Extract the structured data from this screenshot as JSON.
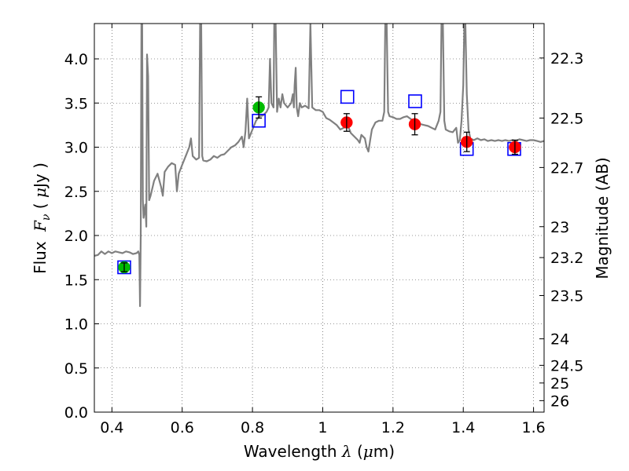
{
  "chart_data": {
    "type": "scatter",
    "xlabel": "Wavelength  λ (μm)",
    "ylabel": "Flux  F_ν  ( μJy )",
    "ylabel_parts": {
      "prefix": "Flux ",
      "sym": "F",
      "sub": "ν",
      "unit_open": "  ( ",
      "mu": "μ",
      "unit_rest": "Jy )"
    },
    "xlabel_parts": {
      "prefix": "Wavelength  ",
      "sym": "λ",
      "open": " (",
      "mu": "μ",
      "rest": "m)"
    },
    "y2label": "Magnitude (AB)",
    "xlim": [
      0.35,
      1.63
    ],
    "ylim": [
      0.0,
      4.4
    ],
    "grid": true,
    "x_ticks": [
      0.4,
      0.6,
      0.8,
      1.0,
      1.2,
      1.4,
      1.6
    ],
    "x_tick_labels": [
      "0.4",
      "0.6",
      "0.8",
      "1",
      "1.2",
      "1.4",
      "1.6"
    ],
    "y_ticks": [
      0.0,
      0.5,
      1.0,
      1.5,
      2.0,
      2.5,
      3.0,
      3.5,
      4.0
    ],
    "y_tick_labels": [
      "0.0",
      "0.5",
      "1.0",
      "1.5",
      "2.0",
      "2.5",
      "3.0",
      "3.5",
      "4.0"
    ],
    "y2_ticks": [
      {
        "label": "22.3",
        "flux": 4.01
      },
      {
        "label": "22.5",
        "flux": 3.33
      },
      {
        "label": "22.7",
        "flux": 2.77
      },
      {
        "label": "23",
        "flux": 2.1
      },
      {
        "label": "23.2",
        "flux": 1.75
      },
      {
        "label": "23.5",
        "flux": 1.32
      },
      {
        "label": "24",
        "flux": 0.83
      },
      {
        "label": "24.5",
        "flux": 0.53
      },
      {
        "label": "25",
        "flux": 0.33
      },
      {
        "label": "26",
        "flux": 0.13
      }
    ],
    "series": [
      {
        "kind": "spectrum",
        "color": "#808080",
        "points": [
          [
            0.35,
            1.77
          ],
          [
            0.36,
            1.78
          ],
          [
            0.37,
            1.82
          ],
          [
            0.38,
            1.79
          ],
          [
            0.39,
            1.82
          ],
          [
            0.4,
            1.8
          ],
          [
            0.41,
            1.82
          ],
          [
            0.42,
            1.81
          ],
          [
            0.43,
            1.8
          ],
          [
            0.44,
            1.82
          ],
          [
            0.45,
            1.81
          ],
          [
            0.46,
            1.79
          ],
          [
            0.47,
            1.8
          ],
          [
            0.475,
            1.82
          ],
          [
            0.478,
            1.78
          ],
          [
            0.48,
            1.2
          ],
          [
            0.482,
            2.0
          ],
          [
            0.484,
            4.4
          ],
          [
            0.486,
            4.4
          ],
          [
            0.488,
            2.4
          ],
          [
            0.49,
            2.2
          ],
          [
            0.495,
            2.35
          ],
          [
            0.498,
            2.1
          ],
          [
            0.5,
            4.05
          ],
          [
            0.503,
            3.8
          ],
          [
            0.506,
            2.4
          ],
          [
            0.51,
            2.45
          ],
          [
            0.52,
            2.62
          ],
          [
            0.53,
            2.7
          ],
          [
            0.54,
            2.55
          ],
          [
            0.545,
            2.45
          ],
          [
            0.55,
            2.72
          ],
          [
            0.56,
            2.78
          ],
          [
            0.57,
            2.82
          ],
          [
            0.58,
            2.8
          ],
          [
            0.585,
            2.5
          ],
          [
            0.59,
            2.7
          ],
          [
            0.6,
            2.8
          ],
          [
            0.61,
            2.9
          ],
          [
            0.62,
            3.0
          ],
          [
            0.625,
            3.1
          ],
          [
            0.63,
            2.9
          ],
          [
            0.64,
            2.86
          ],
          [
            0.648,
            2.88
          ],
          [
            0.651,
            4.4
          ],
          [
            0.654,
            4.4
          ],
          [
            0.657,
            2.9
          ],
          [
            0.66,
            2.85
          ],
          [
            0.67,
            2.84
          ],
          [
            0.68,
            2.86
          ],
          [
            0.69,
            2.9
          ],
          [
            0.7,
            2.88
          ],
          [
            0.71,
            2.91
          ],
          [
            0.72,
            2.92
          ],
          [
            0.73,
            2.96
          ],
          [
            0.74,
            3.0
          ],
          [
            0.75,
            3.02
          ],
          [
            0.76,
            3.06
          ],
          [
            0.77,
            3.12
          ],
          [
            0.775,
            3.0
          ],
          [
            0.78,
            3.18
          ],
          [
            0.785,
            3.55
          ],
          [
            0.79,
            3.1
          ],
          [
            0.8,
            3.2
          ],
          [
            0.81,
            3.3
          ],
          [
            0.82,
            3.35
          ],
          [
            0.83,
            3.36
          ],
          [
            0.84,
            3.4
          ],
          [
            0.846,
            3.45
          ],
          [
            0.85,
            4.0
          ],
          [
            0.854,
            3.5
          ],
          [
            0.86,
            3.45
          ],
          [
            0.862,
            4.4
          ],
          [
            0.866,
            4.4
          ],
          [
            0.87,
            3.4
          ],
          [
            0.875,
            3.55
          ],
          [
            0.88,
            3.45
          ],
          [
            0.885,
            3.6
          ],
          [
            0.89,
            3.5
          ],
          [
            0.9,
            3.45
          ],
          [
            0.91,
            3.5
          ],
          [
            0.915,
            3.6
          ],
          [
            0.918,
            3.45
          ],
          [
            0.92,
            3.7
          ],
          [
            0.923,
            3.9
          ],
          [
            0.926,
            3.45
          ],
          [
            0.93,
            3.35
          ],
          [
            0.935,
            3.5
          ],
          [
            0.94,
            3.45
          ],
          [
            0.95,
            3.47
          ],
          [
            0.96,
            3.44
          ],
          [
            0.965,
            4.4
          ],
          [
            0.97,
            3.45
          ],
          [
            0.98,
            3.42
          ],
          [
            0.99,
            3.42
          ],
          [
            1.0,
            3.4
          ],
          [
            1.01,
            3.33
          ],
          [
            1.02,
            3.31
          ],
          [
            1.03,
            3.28
          ],
          [
            1.04,
            3.25
          ],
          [
            1.05,
            3.2
          ],
          [
            1.06,
            3.22
          ],
          [
            1.07,
            3.26
          ],
          [
            1.08,
            3.16
          ],
          [
            1.09,
            3.12
          ],
          [
            1.1,
            3.08
          ],
          [
            1.105,
            3.05
          ],
          [
            1.11,
            3.14
          ],
          [
            1.12,
            3.1
          ],
          [
            1.125,
            3.0
          ],
          [
            1.13,
            2.95
          ],
          [
            1.135,
            3.08
          ],
          [
            1.14,
            3.2
          ],
          [
            1.15,
            3.28
          ],
          [
            1.16,
            3.3
          ],
          [
            1.17,
            3.3
          ],
          [
            1.175,
            3.4
          ],
          [
            1.178,
            4.4
          ],
          [
            1.182,
            4.4
          ],
          [
            1.186,
            3.4
          ],
          [
            1.19,
            3.35
          ],
          [
            1.2,
            3.34
          ],
          [
            1.21,
            3.32
          ],
          [
            1.22,
            3.32
          ],
          [
            1.23,
            3.34
          ],
          [
            1.24,
            3.35
          ],
          [
            1.25,
            3.32
          ],
          [
            1.26,
            3.3
          ],
          [
            1.27,
            3.28
          ],
          [
            1.28,
            3.26
          ],
          [
            1.29,
            3.25
          ],
          [
            1.3,
            3.24
          ],
          [
            1.31,
            3.22
          ],
          [
            1.32,
            3.2
          ],
          [
            1.33,
            3.3
          ],
          [
            1.335,
            3.4
          ],
          [
            1.338,
            4.4
          ],
          [
            1.342,
            4.4
          ],
          [
            1.346,
            3.3
          ],
          [
            1.35,
            3.2
          ],
          [
            1.36,
            3.18
          ],
          [
            1.37,
            3.17
          ],
          [
            1.38,
            3.22
          ],
          [
            1.385,
            3.05
          ],
          [
            1.39,
            3.08
          ],
          [
            1.395,
            3.3
          ],
          [
            1.4,
            3.7
          ],
          [
            1.403,
            4.4
          ],
          [
            1.406,
            4.4
          ],
          [
            1.41,
            3.6
          ],
          [
            1.415,
            3.2
          ],
          [
            1.42,
            3.1
          ],
          [
            1.43,
            3.08
          ],
          [
            1.44,
            3.1
          ],
          [
            1.45,
            3.08
          ],
          [
            1.46,
            3.09
          ],
          [
            1.47,
            3.07
          ],
          [
            1.48,
            3.08
          ],
          [
            1.49,
            3.07
          ],
          [
            1.5,
            3.08
          ],
          [
            1.51,
            3.07
          ],
          [
            1.52,
            3.08
          ],
          [
            1.53,
            3.07
          ],
          [
            1.54,
            3.08
          ],
          [
            1.55,
            3.07
          ],
          [
            1.56,
            3.09
          ],
          [
            1.57,
            3.08
          ],
          [
            1.58,
            3.07
          ],
          [
            1.59,
            3.08
          ],
          [
            1.6,
            3.08
          ],
          [
            1.61,
            3.07
          ],
          [
            1.62,
            3.06
          ],
          [
            1.63,
            3.07
          ]
        ]
      },
      {
        "kind": "model_photometry",
        "marker": "open-square",
        "color": "#0000ff",
        "points": [
          [
            0.435,
            1.64
          ],
          [
            0.818,
            3.3
          ],
          [
            1.07,
            3.57
          ],
          [
            1.263,
            3.52
          ],
          [
            1.41,
            2.98
          ],
          [
            1.545,
            2.98
          ]
        ]
      },
      {
        "kind": "observed",
        "marker": "filled-circle",
        "color": "#00bb00",
        "points": [
          {
            "x": 0.435,
            "y": 1.64,
            "err": 0.05
          },
          {
            "x": 0.818,
            "y": 3.45,
            "err": 0.12
          }
        ]
      },
      {
        "kind": "observed",
        "marker": "filled-circle",
        "color": "#ff0000",
        "points": [
          {
            "x": 1.068,
            "y": 3.28,
            "err": 0.1
          },
          {
            "x": 1.262,
            "y": 3.26,
            "err": 0.12
          },
          {
            "x": 1.41,
            "y": 3.06,
            "err": 0.11
          },
          {
            "x": 1.547,
            "y": 3.0,
            "err": 0.08
          }
        ]
      }
    ]
  }
}
